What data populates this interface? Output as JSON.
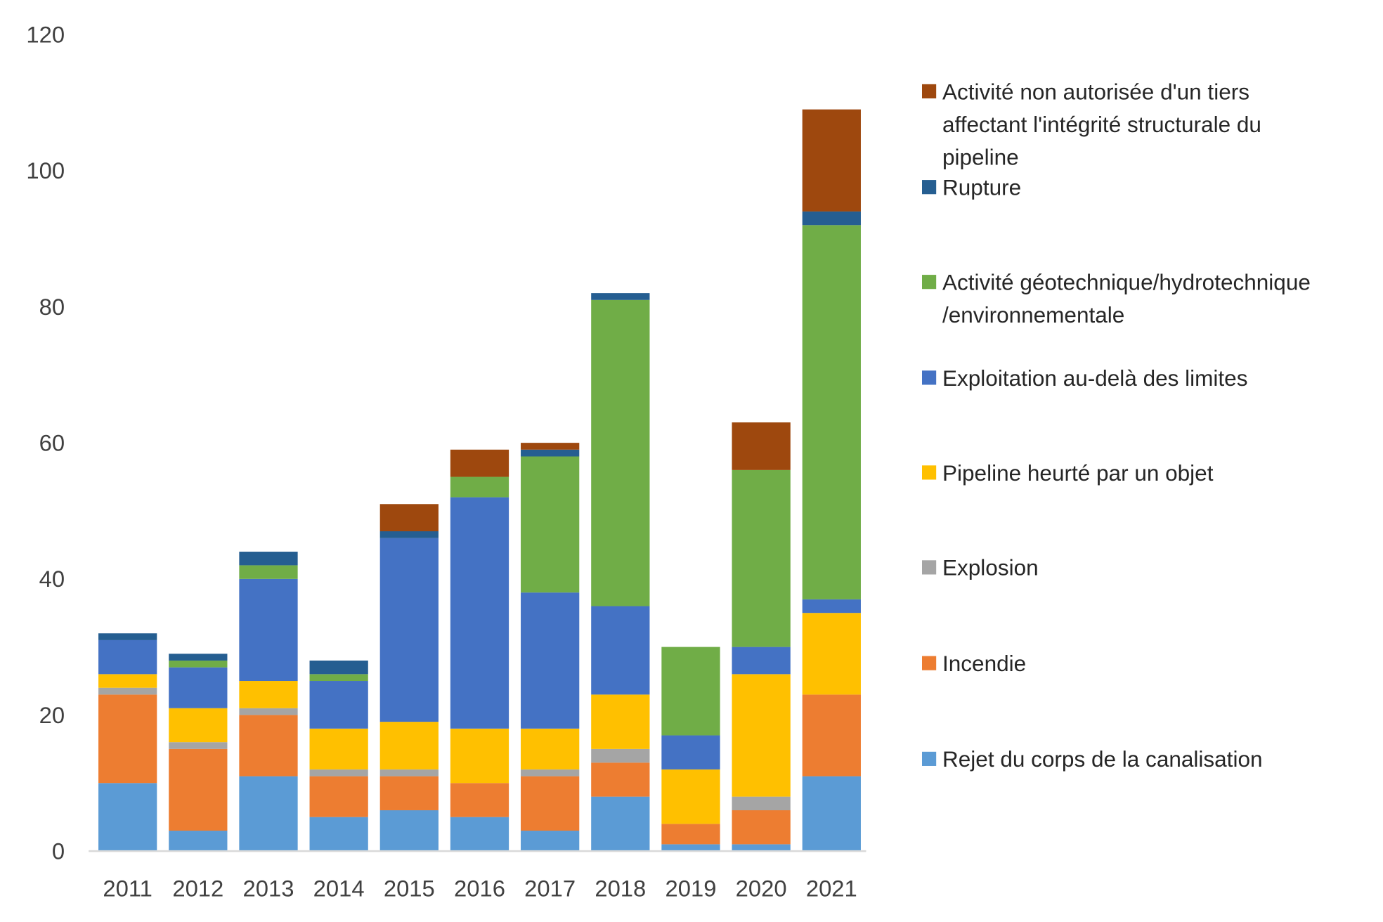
{
  "chart_data": {
    "type": "bar",
    "stacked": true,
    "title": "",
    "xlabel": "",
    "ylabel": "",
    "ylim": [
      0,
      120
    ],
    "yticks": [
      0,
      20,
      40,
      60,
      80,
      100,
      120
    ],
    "grid": false,
    "legend_position": "right",
    "categories": [
      "2011",
      "2012",
      "2013",
      "2014",
      "2015",
      "2016",
      "2017",
      "2018",
      "2019",
      "2020",
      "2021"
    ],
    "series": [
      {
        "name": "Rejet du corps de la canalisation",
        "label_lines": [
          "Rejet du corps de la canalisation"
        ],
        "color": "#5B9BD5",
        "values": [
          10,
          3,
          11,
          5,
          6,
          5,
          3,
          8,
          1,
          1,
          11
        ]
      },
      {
        "name": "Incendie",
        "label_lines": [
          "Incendie"
        ],
        "color": "#ED7D31",
        "values": [
          13,
          12,
          9,
          6,
          5,
          5,
          8,
          5,
          3,
          5,
          12
        ]
      },
      {
        "name": "Explosion",
        "label_lines": [
          "Explosion"
        ],
        "color": "#A5A5A5",
        "values": [
          1,
          1,
          1,
          1,
          1,
          0,
          1,
          2,
          0,
          2,
          0
        ]
      },
      {
        "name": "Pipeline heurté par un objet",
        "label_lines": [
          "Pipeline heurté par un objet"
        ],
        "color": "#FFC000",
        "values": [
          2,
          5,
          4,
          6,
          7,
          8,
          6,
          8,
          8,
          18,
          12
        ]
      },
      {
        "name": "Exploitation au-delà des limites",
        "label_lines": [
          "Exploitation au-delà des limites"
        ],
        "color": "#4472C4",
        "values": [
          5,
          6,
          15,
          7,
          27,
          34,
          20,
          13,
          5,
          4,
          2
        ]
      },
      {
        "name": "Activité géotechnique/hydrotechnique/environnementale",
        "label_lines": [
          "Activité géotechnique/hydrotechnique",
          "/environnementale"
        ],
        "color": "#70AD47",
        "values": [
          0,
          1,
          2,
          1,
          0,
          3,
          20,
          45,
          13,
          26,
          55
        ]
      },
      {
        "name": "Rupture",
        "label_lines": [
          "Rupture"
        ],
        "color": "#255E91",
        "values": [
          1,
          1,
          2,
          2,
          1,
          0,
          1,
          1,
          0,
          0,
          2
        ]
      },
      {
        "name": "Activité non autorisée d'un tiers affectant l'intégrité structurale du pipeline",
        "label_lines": [
          "Activité non autorisée d'un tiers",
          "affectant l'intégrité structurale du",
          "pipeline"
        ],
        "color": "#9E480E",
        "values": [
          0,
          0,
          0,
          0,
          4,
          4,
          1,
          0,
          0,
          7,
          15
        ]
      }
    ]
  }
}
